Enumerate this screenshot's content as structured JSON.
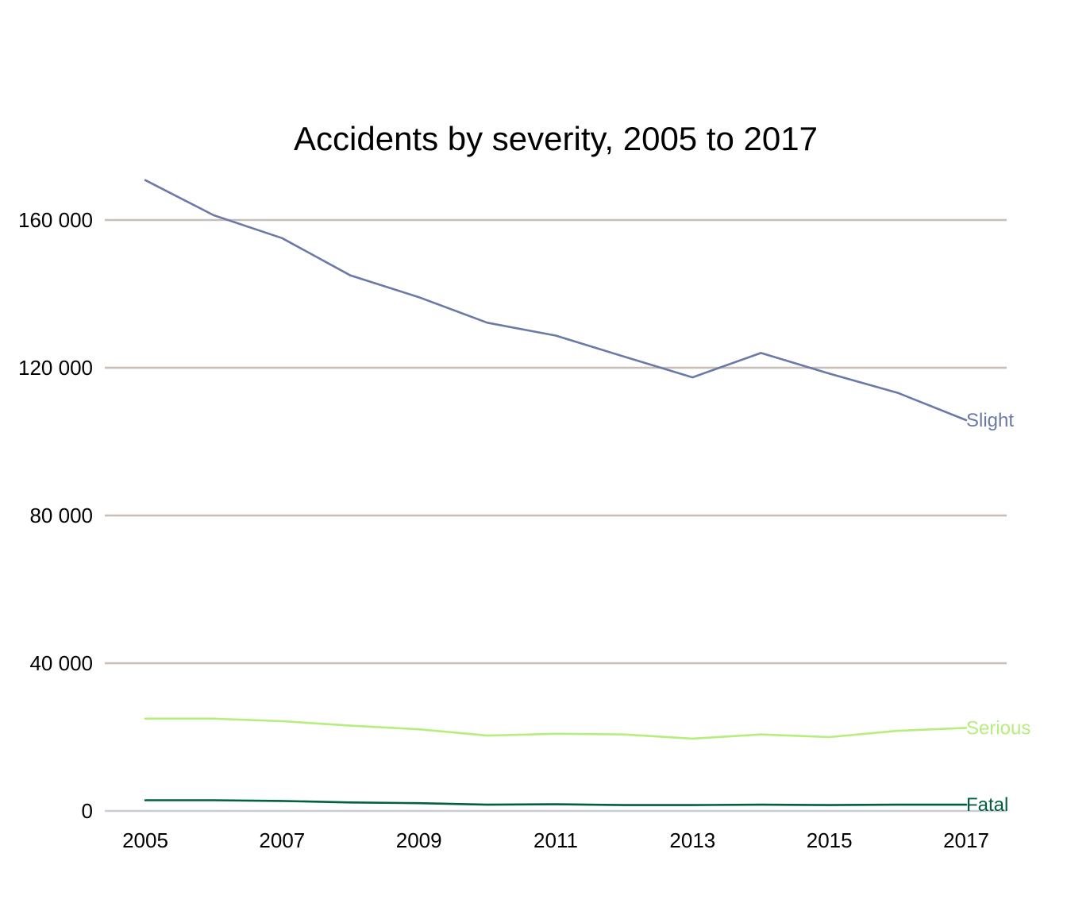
{
  "chart_data": {
    "type": "line",
    "title": "Accidents by severity, 2005 to 2017",
    "xlabel": "",
    "ylabel": "",
    "x": [
      2005,
      2006,
      2007,
      2008,
      2009,
      2010,
      2011,
      2012,
      2013,
      2014,
      2015,
      2016,
      2017
    ],
    "x_tick_labels": [
      "2005",
      "2007",
      "2009",
      "2011",
      "2013",
      "2015",
      "2017"
    ],
    "y_tick_labels": [
      "0",
      "40 000",
      "80 000",
      "120 000",
      "160 000"
    ],
    "y_ticks": [
      0,
      40000,
      80000,
      120000,
      160000
    ],
    "ylim": [
      0,
      180000
    ],
    "grid": true,
    "legend": "none",
    "series": [
      {
        "name": "Slight",
        "color": "#6b79a8",
        "values": [
          170800,
          161300,
          155100,
          145000,
          139100,
          132200,
          128700,
          123000,
          117400,
          124000,
          118400,
          113200,
          105800
        ]
      },
      {
        "name": "Serious",
        "color": "#b5ee7c",
        "values": [
          25000,
          25000,
          24300,
          23100,
          22100,
          20400,
          20900,
          20700,
          19600,
          20700,
          20000,
          21700,
          22500
        ]
      },
      {
        "name": "Fatal",
        "color": "#00603f",
        "values": [
          2900,
          2900,
          2700,
          2300,
          2100,
          1700,
          1800,
          1600,
          1600,
          1700,
          1600,
          1700,
          1700
        ]
      }
    ],
    "colors": {
      "grid": "#c7bfb7",
      "baseline": "#c9cdd6",
      "text": "#000000"
    }
  }
}
